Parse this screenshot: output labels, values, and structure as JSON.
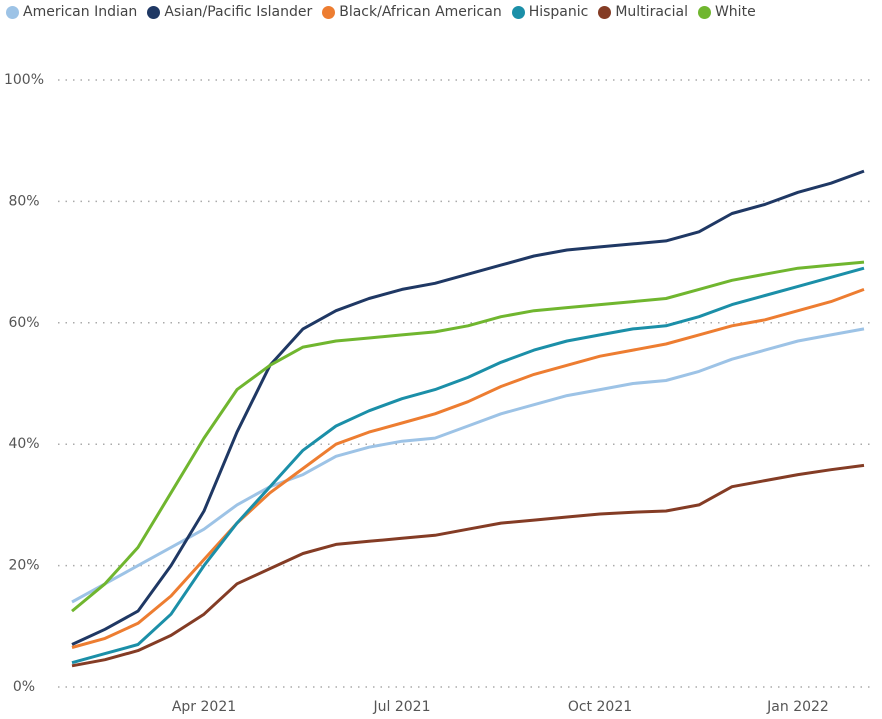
{
  "chart_data": {
    "type": "line",
    "categories": [
      null,
      null,
      null,
      null,
      "Apr 2021",
      null,
      null,
      null,
      null,
      null,
      "Jul 2021",
      null,
      null,
      null,
      null,
      null,
      "Oct 2021",
      null,
      null,
      null,
      null,
      null,
      "Jan 2022",
      null,
      null
    ],
    "ylim": [
      0,
      100
    ],
    "yticks": [
      {
        "value": 0,
        "label": "0%"
      },
      {
        "value": 20,
        "label": "20%"
      },
      {
        "value": 40,
        "label": "40%"
      },
      {
        "value": 60,
        "label": "60%"
      },
      {
        "value": 80,
        "label": "80%"
      },
      {
        "value": 100,
        "label": "100%"
      }
    ],
    "grid": true,
    "series": [
      {
        "name": "American Indian",
        "color": "#9dc3e6",
        "values": [
          14,
          17,
          20,
          23,
          26,
          30,
          33,
          35,
          38,
          39.5,
          40.5,
          41,
          43,
          45,
          46.5,
          48,
          49,
          50,
          50.5,
          52,
          54,
          55.5,
          57,
          58,
          59
        ]
      },
      {
        "name": "Asian/Pacific Islander",
        "color": "#1f3864",
        "values": [
          7,
          9.5,
          12.5,
          20,
          29,
          42,
          53,
          59,
          62,
          64,
          65.5,
          66.5,
          68,
          69.5,
          71,
          72,
          72.5,
          73,
          73.5,
          75,
          78,
          79.5,
          81.5,
          83,
          85
        ]
      },
      {
        "name": "Black/African American",
        "color": "#ed7d31",
        "values": [
          6.5,
          8,
          10.5,
          15,
          21,
          27,
          32,
          36,
          40,
          42,
          43.5,
          45,
          47,
          49.5,
          51.5,
          53,
          54.5,
          55.5,
          56.5,
          58,
          59.5,
          60.5,
          62,
          63.5,
          65.5
        ]
      },
      {
        "name": "Hispanic",
        "color": "#1b8fa8",
        "values": [
          4,
          5.5,
          7,
          12,
          20,
          27,
          33,
          39,
          43,
          45.5,
          47.5,
          49,
          51,
          53.5,
          55.5,
          57,
          58,
          59,
          59.5,
          61,
          63,
          64.5,
          66,
          67.5,
          69
        ]
      },
      {
        "name": "Multiracial",
        "color": "#843c25",
        "values": [
          3.5,
          4.5,
          6,
          8.5,
          12,
          17,
          19.5,
          22,
          23.5,
          24,
          24.5,
          25,
          26,
          27,
          27.5,
          28,
          28.5,
          28.8,
          29,
          30,
          33,
          34,
          35,
          35.8,
          36.5
        ]
      },
      {
        "name": "White",
        "color": "#70b62f",
        "values": [
          12.5,
          17,
          23,
          32,
          41,
          49,
          53,
          56,
          57,
          57.5,
          58,
          58.5,
          59.5,
          61,
          62,
          62.5,
          63,
          63.5,
          64,
          65.5,
          67,
          68,
          69,
          69.5,
          70
        ]
      }
    ]
  }
}
